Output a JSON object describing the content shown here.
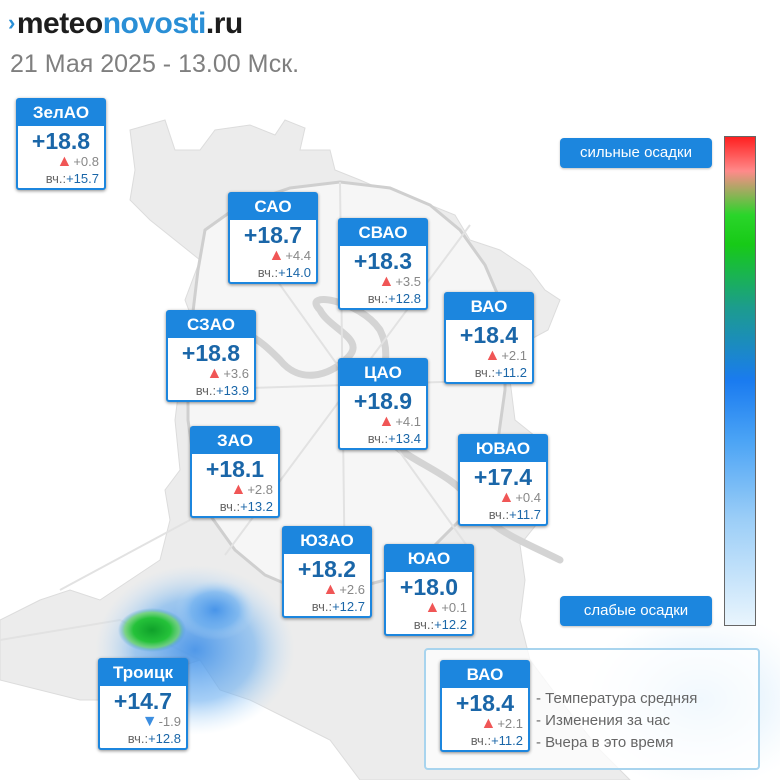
{
  "header": {
    "logo_prefix": "meteo",
    "logo_main": "novosti",
    "logo_suffix": ".ru",
    "datetime": "21 Мая 2025 - 13.00 Мск."
  },
  "districts": {
    "zelao": {
      "name": "ЗелАО",
      "temp": "+18.8",
      "change": "+0.8",
      "trend": "up",
      "yesterday_label": "вч.:",
      "yesterday": "+15.7"
    },
    "sao": {
      "name": "САО",
      "temp": "+18.7",
      "change": "+4.4",
      "trend": "up",
      "yesterday_label": "вч.:",
      "yesterday": "+14.0"
    },
    "svao": {
      "name": "СВАО",
      "temp": "+18.3",
      "change": "+3.5",
      "trend": "up",
      "yesterday_label": "вч.:",
      "yesterday": "+12.8"
    },
    "vao": {
      "name": "ВАО",
      "temp": "+18.4",
      "change": "+2.1",
      "trend": "up",
      "yesterday_label": "вч.:",
      "yesterday": "+11.2"
    },
    "szao": {
      "name": "СЗАО",
      "temp": "+18.8",
      "change": "+3.6",
      "trend": "up",
      "yesterday_label": "вч.:",
      "yesterday": "+13.9"
    },
    "cao": {
      "name": "ЦАО",
      "temp": "+18.9",
      "change": "+4.1",
      "trend": "up",
      "yesterday_label": "вч.:",
      "yesterday": "+13.4"
    },
    "zao": {
      "name": "ЗАО",
      "temp": "+18.1",
      "change": "+2.8",
      "trend": "up",
      "yesterday_label": "вч.:",
      "yesterday": "+13.2"
    },
    "yuvao": {
      "name": "ЮВАО",
      "temp": "+17.4",
      "change": "+0.4",
      "trend": "up",
      "yesterday_label": "вч.:",
      "yesterday": "+11.7"
    },
    "yuzao": {
      "name": "ЮЗАО",
      "temp": "+18.2",
      "change": "+2.6",
      "trend": "up",
      "yesterday_label": "вч.:",
      "yesterday": "+12.7"
    },
    "yuao": {
      "name": "ЮАО",
      "temp": "+18.0",
      "change": "+0.1",
      "trend": "up",
      "yesterday_label": "вч.:",
      "yesterday": "+12.2"
    },
    "troitsk": {
      "name": "Троицк",
      "temp": "+14.7",
      "change": "-1.9",
      "trend": "down",
      "yesterday_label": "вч.:",
      "yesterday": "+12.8"
    }
  },
  "precip_scale": {
    "strong_label": "сильные осадки",
    "weak_label": "слабые осадки",
    "colors": [
      "#ff2020",
      "#2ad52a",
      "#1a7bf0",
      "#e9f5fd"
    ]
  },
  "legend": {
    "example": {
      "name": "ВАО",
      "temp": "+18.4",
      "change": "+2.1",
      "trend": "up",
      "yesterday_label": "вч.:",
      "yesterday": "+11.2"
    },
    "line1": "- Температура средняя",
    "line2": "- Изменения за час",
    "line3": "- Вчера в это время"
  },
  "colors": {
    "accent": "#1c86de",
    "temp_text": "#1a66a8",
    "rise": "#f05656",
    "fall": "#3c8ee0",
    "title_gray": "#7f7f7f"
  }
}
